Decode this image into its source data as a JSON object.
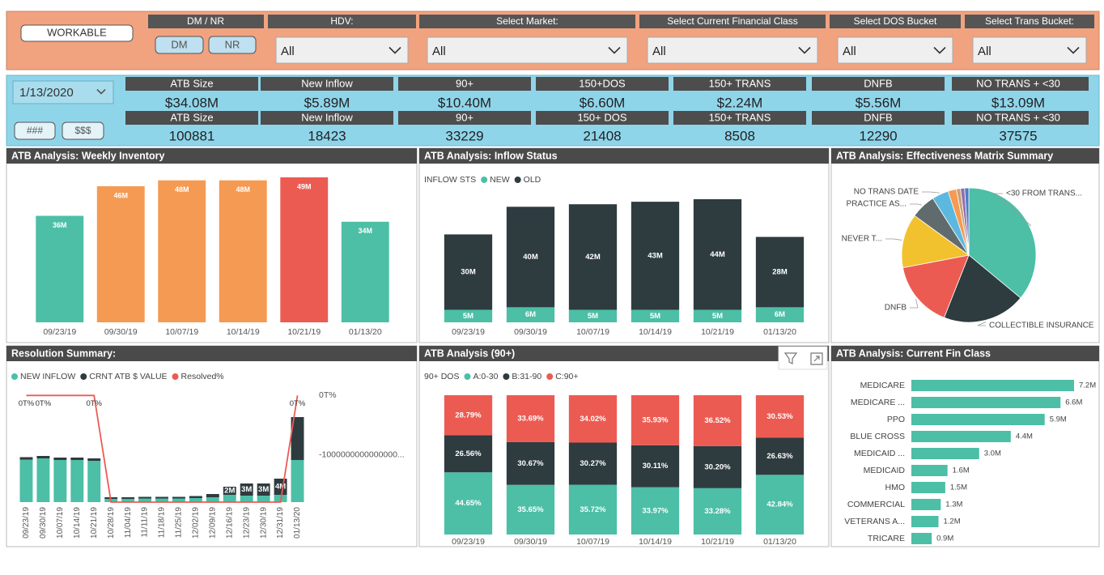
{
  "filters": {
    "workable": "WORKABLE",
    "dm_nr": {
      "title": "DM / NR",
      "options": [
        "DM",
        "NR"
      ]
    },
    "dropdowns": [
      {
        "title": "HDV:",
        "value": "All"
      },
      {
        "title": "Select Market:",
        "value": "All"
      },
      {
        "title": "Select Current Financial Class",
        "value": "All"
      },
      {
        "title": "Select DOS Bucket",
        "value": "All"
      },
      {
        "title": "Select Trans Bucket:",
        "value": "All"
      }
    ]
  },
  "kpis": {
    "date": "1/13/2020",
    "toggles": [
      "###",
      "$$$"
    ],
    "rows": [
      [
        {
          "label": "ATB Size",
          "value": "$34.08M"
        },
        {
          "label": "New Inflow",
          "value": "$5.89M"
        },
        {
          "label": "90+",
          "value": "$10.40M"
        },
        {
          "label": "150+DOS",
          "value": "$6.60M"
        },
        {
          "label": "150+ TRANS",
          "value": "$2.24M"
        },
        {
          "label": "DNFB",
          "value": "$5.56M"
        },
        {
          "label": "NO TRANS + <30",
          "value": "$13.09M"
        }
      ],
      [
        {
          "label": "ATB Size",
          "value": "100881"
        },
        {
          "label": "New Inflow",
          "value": "18423"
        },
        {
          "label": "90+",
          "value": "33229"
        },
        {
          "label": "150+ DOS",
          "value": "21408"
        },
        {
          "label": "150+ TRANS",
          "value": "8508"
        },
        {
          "label": "DNFB",
          "value": "12290"
        },
        {
          "label": "NO TRANS + <30",
          "value": "37575"
        }
      ]
    ]
  },
  "chart_data": [
    {
      "type": "bar",
      "title": "ATB Analysis: Weekly Inventory",
      "categories": [
        "09/23/19",
        "09/30/19",
        "10/07/19",
        "10/14/19",
        "10/21/19",
        "01/13/20"
      ],
      "values": [
        36,
        46,
        48,
        48,
        49,
        34
      ],
      "value_labels": [
        "36M",
        "46M",
        "48M",
        "48M",
        "49M",
        "34M"
      ],
      "colors": [
        "#4cbfa6",
        "#f59a52",
        "#f59a52",
        "#f59a52",
        "#ec5b52",
        "#4cbfa6"
      ]
    },
    {
      "type": "stacked_bar",
      "title": "ATB Analysis: Inflow Status",
      "legend_title": "INFLOW STS",
      "categories": [
        "09/23/19",
        "09/30/19",
        "10/07/19",
        "10/14/19",
        "10/21/19",
        "01/13/20"
      ],
      "series": [
        {
          "name": "NEW",
          "color": "#4cbfa6",
          "values": [
            5,
            6,
            5,
            5,
            5,
            6
          ],
          "value_labels": [
            "5M",
            "6M",
            "5M",
            "5M",
            "5M",
            "6M"
          ]
        },
        {
          "name": "OLD",
          "color": "#2e3b3f",
          "values": [
            30,
            40,
            42,
            43,
            44,
            28
          ],
          "value_labels": [
            "30M",
            "40M",
            "42M",
            "43M",
            "44M",
            "28M"
          ]
        }
      ]
    },
    {
      "type": "pie",
      "title": "ATB Analysis: Effectiveness Matrix Summary",
      "categories": [
        "<30 FROM TRANS...",
        "COLLECTIBLE INSURANCE",
        "DNFB",
        "NEVER T...",
        "PRACTICE AS...",
        "NO TRANS DATE",
        null,
        null,
        null,
        null
      ],
      "values": [
        36,
        20,
        16,
        13,
        6,
        4,
        2,
        1,
        1,
        1
      ],
      "colors": [
        "#4cbfa6",
        "#2e3b3f",
        "#ec5b52",
        "#f2c12e",
        "#5f6b6d",
        "#5db8e0",
        "#f59a52",
        "#c9a27a",
        "#8e6fb5",
        "#4a7fbf"
      ]
    },
    {
      "type": "combo",
      "title": "Resolution Summary:",
      "categories": [
        "09/23/19",
        "09/30/19",
        "10/07/19",
        "10/14/19",
        "10/21/19",
        "10/28/19",
        "11/04/19",
        "11/11/19",
        "11/18/19",
        "11/25/19",
        "12/02/19",
        "12/09/19",
        "12/16/19",
        "12/23/19",
        "12/30/19",
        "12/31/19",
        "01/13/20"
      ],
      "series": [
        {
          "name": "NEW INFLOW",
          "color": "#4cbfa6",
          "values": [
            10.5,
            10.8,
            10.4,
            10.4,
            10.2,
            0.8,
            0.8,
            0.9,
            0.9,
            0.9,
            1.0,
            1.2,
            1.8,
            1.6,
            1.6,
            1.8,
            10.4
          ]
        },
        {
          "name": "CRNT ATB $ VALUE",
          "color": "#2e3b3f",
          "values": [
            0.6,
            0.6,
            0.6,
            0.6,
            0.6,
            0.4,
            0.4,
            0.4,
            0.4,
            0.4,
            0.5,
            0.8,
            2,
            3,
            3,
            4,
            10.6
          ],
          "value_labels": [
            null,
            null,
            null,
            null,
            null,
            null,
            null,
            null,
            null,
            null,
            null,
            null,
            "2M",
            "3M",
            "3M",
            "4M",
            null
          ]
        },
        {
          "name": "Resolved%",
          "color": "#ec5b52",
          "type": "line",
          "axis": "y2",
          "values": [
            0,
            0,
            0,
            0,
            0,
            -1800000000000000,
            -1800000000000000,
            -1800000000000000,
            -1800000000000000,
            -1800000000000000,
            -1800000000000000,
            -1800000000000000,
            -1800000000000000,
            -1800000000000000,
            -1800000000000000,
            -1800000000000000,
            0
          ],
          "value_labels": [
            "0T%",
            "0T%",
            null,
            null,
            "0T%",
            null,
            null,
            null,
            null,
            null,
            null,
            null,
            null,
            null,
            null,
            null,
            "0T%"
          ]
        }
      ],
      "y2lim": [
        -1800000000000000,
        100000000000000
      ],
      "y2ticks": [
        {
          "value": 0,
          "label": "0T%"
        },
        {
          "value": -1000000000000000,
          "label": "-1000000000000000..."
        }
      ]
    },
    {
      "type": "stacked_bar",
      "title": "ATB Analysis (90+)",
      "legend_title": "90+ DOS",
      "categories": [
        "09/23/19",
        "09/30/19",
        "10/07/19",
        "10/14/19",
        "10/21/19",
        "01/13/20"
      ],
      "series": [
        {
          "name": "A:0-30",
          "color": "#4cbfa6",
          "values": [
            44.65,
            35.65,
            35.72,
            33.97,
            33.28,
            42.84
          ],
          "value_labels": [
            "44.65%",
            "35.65%",
            "35.72%",
            "33.97%",
            "33.28%",
            "42.84%"
          ]
        },
        {
          "name": "B:31-90",
          "color": "#2e3b3f",
          "values": [
            26.56,
            30.67,
            30.27,
            30.11,
            30.2,
            26.63
          ],
          "value_labels": [
            "26.56%",
            "30.67%",
            "30.27%",
            "30.11%",
            "30.20%",
            "26.63%"
          ]
        },
        {
          "name": "C:90+",
          "color": "#ec5b52",
          "values": [
            28.79,
            33.69,
            34.02,
            35.93,
            36.52,
            30.53
          ],
          "value_labels": [
            "28.79%",
            "33.69%",
            "34.02%",
            "35.93%",
            "36.52%",
            "30.53%"
          ]
        }
      ]
    },
    {
      "type": "hbar",
      "title": "ATB Analysis: Current Fin Class",
      "categories": [
        "MEDICARE",
        "MEDICARE ...",
        "PPO",
        "BLUE CROSS",
        "MEDICAID ...",
        "MEDICAID",
        "HMO",
        "COMMERCIAL",
        "VETERANS A...",
        "TRICARE"
      ],
      "values": [
        7.2,
        6.6,
        5.9,
        4.4,
        3.0,
        1.6,
        1.5,
        1.3,
        1.2,
        0.9
      ],
      "value_labels": [
        "7.2M",
        "6.6M",
        "5.9M",
        "4.4M",
        "3.0M",
        "1.6M",
        "1.5M",
        "1.3M",
        "1.2M",
        "0.9M"
      ],
      "color": "#4cbfa6"
    }
  ]
}
